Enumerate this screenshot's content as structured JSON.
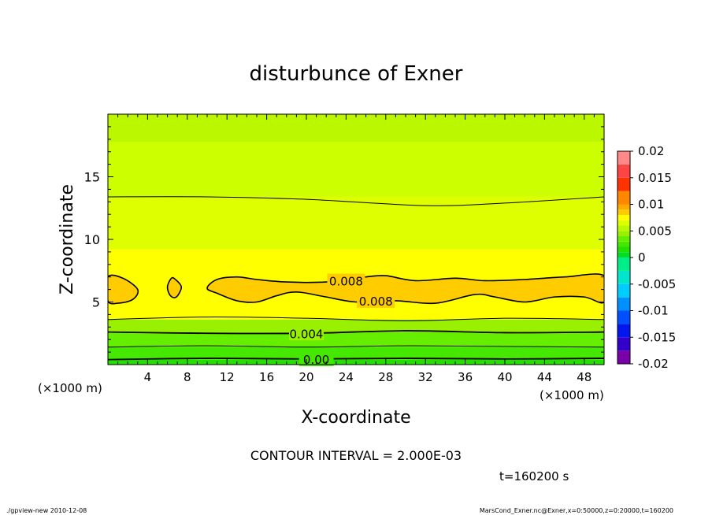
{
  "chart_data": {
    "type": "heatmap",
    "subtype": "filled-contour",
    "title": "disturbunce of Exner",
    "xlabel": "X-coordinate",
    "ylabel": "Z-coordinate",
    "x_unit": "(×1000 m)",
    "y_unit": "(×1000 m)",
    "xlim": [
      0,
      50
    ],
    "ylim": [
      0,
      20
    ],
    "x_ticks": [
      4,
      8,
      12,
      16,
      20,
      24,
      28,
      32,
      36,
      40,
      44,
      48
    ],
    "y_ticks": [
      5,
      10,
      15
    ],
    "contour_interval_text": "CONTOUR INTERVAL = 2.000E-03",
    "time_text": "t=160200 s",
    "footer_left": "./gpview-new  2010-12-08",
    "footer_right": "MarsCond_Exner.nc@Exner,x=0:50000,z=0:20000,t=160200",
    "colorbar": {
      "labels": [
        "0.02",
        "0.015",
        "0.01",
        "0.005",
        "0",
        "-0.005",
        "-0.01",
        "-0.015",
        "-0.02"
      ],
      "range": [
        -0.02,
        0.02
      ],
      "bands": [
        {
          "from": -0.02,
          "to": -0.0175,
          "color": "#7a00aa"
        },
        {
          "from": -0.0175,
          "to": -0.015,
          "color": "#3300cc"
        },
        {
          "from": -0.015,
          "to": -0.0125,
          "color": "#0018ee"
        },
        {
          "from": -0.0125,
          "to": -0.01,
          "color": "#0050ff"
        },
        {
          "from": -0.01,
          "to": -0.0075,
          "color": "#0090ff"
        },
        {
          "from": -0.0075,
          "to": -0.005,
          "color": "#00ccff"
        },
        {
          "from": -0.005,
          "to": -0.0025,
          "color": "#00e6cc"
        },
        {
          "from": -0.0025,
          "to": 0.0,
          "color": "#00ee88"
        },
        {
          "from": 0.0,
          "to": 0.001,
          "color": "#00dd22"
        },
        {
          "from": 0.001,
          "to": 0.002,
          "color": "#22e000"
        },
        {
          "from": 0.002,
          "to": 0.003,
          "color": "#44e800"
        },
        {
          "from": 0.003,
          "to": 0.004,
          "color": "#66ee00"
        },
        {
          "from": 0.004,
          "to": 0.005,
          "color": "#99f000"
        },
        {
          "from": 0.005,
          "to": 0.006,
          "color": "#bbf800"
        },
        {
          "from": 0.006,
          "to": 0.007,
          "color": "#ddff00"
        },
        {
          "from": 0.007,
          "to": 0.008,
          "color": "#ffff00"
        },
        {
          "from": 0.008,
          "to": 0.009,
          "color": "#ffcc00"
        },
        {
          "from": 0.009,
          "to": 0.01,
          "color": "#ffaa00"
        },
        {
          "from": 0.01,
          "to": 0.0125,
          "color": "#ff8800"
        },
        {
          "from": 0.0125,
          "to": 0.015,
          "color": "#ff3300"
        },
        {
          "from": 0.015,
          "to": 0.0175,
          "color": "#ff4444"
        },
        {
          "from": 0.0175,
          "to": 0.02,
          "color": "#ff8888"
        }
      ]
    },
    "filled_bands": [
      {
        "z_bottom": 0.0,
        "z_top": 0.4,
        "color": "#22e000"
      },
      {
        "z_bottom": 0.4,
        "z_top": 1.4,
        "color": "#44e800"
      },
      {
        "z_bottom": 1.4,
        "z_top": 2.6,
        "color": "#66ee00"
      },
      {
        "z_bottom": 2.6,
        "z_top": 3.6,
        "color": "#99f000"
      },
      {
        "z_bottom": 3.6,
        "z_top": 9.2,
        "color": "#ffff00"
      },
      {
        "z_bottom": 9.2,
        "z_top": 13.4,
        "color": "#ddff00"
      },
      {
        "z_bottom": 13.4,
        "z_top": 17.8,
        "color": "#ccff00"
      },
      {
        "z_bottom": 17.8,
        "z_top": 20.0,
        "color": "#bbf800"
      }
    ],
    "contours": [
      {
        "level": 0.0,
        "label": "0.00",
        "label_x": 21,
        "points": [
          [
            0,
            0.4
          ],
          [
            10,
            0.5
          ],
          [
            20,
            0.45
          ],
          [
            30,
            0.5
          ],
          [
            40,
            0.45
          ],
          [
            50,
            0.5
          ]
        ]
      },
      {
        "level": 0.002,
        "label": "",
        "points": [
          [
            0,
            1.4
          ],
          [
            10,
            1.5
          ],
          [
            20,
            1.4
          ],
          [
            30,
            1.5
          ],
          [
            40,
            1.45
          ],
          [
            50,
            1.4
          ]
        ]
      },
      {
        "level": 0.004,
        "label": "0.004",
        "label_x": 20,
        "points": [
          [
            0,
            2.6
          ],
          [
            10,
            2.5
          ],
          [
            20,
            2.5
          ],
          [
            30,
            2.7
          ],
          [
            40,
            2.55
          ],
          [
            50,
            2.6
          ]
        ]
      },
      {
        "level": 0.006,
        "label": "",
        "points": [
          [
            0,
            3.6
          ],
          [
            10,
            3.8
          ],
          [
            20,
            3.7
          ],
          [
            30,
            3.5
          ],
          [
            40,
            3.7
          ],
          [
            50,
            3.6
          ]
        ]
      },
      {
        "level": 0.006,
        "label": "",
        "points": [
          [
            0,
            13.4
          ],
          [
            10,
            13.4
          ],
          [
            20,
            13.2
          ],
          [
            32,
            12.7
          ],
          [
            40,
            12.9
          ],
          [
            50,
            13.4
          ]
        ]
      }
    ],
    "closed_regions": [
      {
        "level": 0.008,
        "color": "#ffcc00",
        "points": [
          [
            0,
            7.0
          ],
          [
            1.5,
            6.9
          ],
          [
            3.0,
            6.0
          ],
          [
            2.5,
            5.2
          ],
          [
            1.0,
            4.9
          ],
          [
            0,
            5.1
          ]
        ]
      },
      {
        "level": 0.008,
        "color": "#ffcc00",
        "points": [
          [
            6.8,
            6.8
          ],
          [
            7.4,
            6.2
          ],
          [
            6.9,
            5.4
          ],
          [
            6.3,
            5.5
          ],
          [
            6.0,
            6.2
          ],
          [
            6.4,
            6.9
          ]
        ]
      },
      {
        "level": 0.008,
        "color": "#ffcc00",
        "label": "0.008",
        "label_x": 27,
        "label_y": 5.1,
        "label2": "0.008",
        "label2_x": 24,
        "label2_y": 6.7,
        "points": [
          [
            50,
            7.1
          ],
          [
            46,
            7.0
          ],
          [
            42,
            6.8
          ],
          [
            38,
            6.7
          ],
          [
            35,
            6.9
          ],
          [
            31,
            6.7
          ],
          [
            28,
            7.1
          ],
          [
            26,
            7.0
          ],
          [
            22,
            6.6
          ],
          [
            18,
            6.6
          ],
          [
            15,
            6.8
          ],
          [
            13,
            7.0
          ],
          [
            11,
            6.8
          ],
          [
            10,
            6.1
          ],
          [
            11,
            5.7
          ],
          [
            13,
            5.1
          ],
          [
            15,
            5.0
          ],
          [
            17,
            5.5
          ],
          [
            19,
            5.8
          ],
          [
            22,
            5.4
          ],
          [
            25,
            5.0
          ],
          [
            29,
            5.1
          ],
          [
            33,
            4.9
          ],
          [
            37,
            5.6
          ],
          [
            39,
            5.4
          ],
          [
            42,
            5.0
          ],
          [
            45,
            5.4
          ],
          [
            48,
            5.4
          ],
          [
            50,
            5.0
          ]
        ]
      }
    ]
  }
}
